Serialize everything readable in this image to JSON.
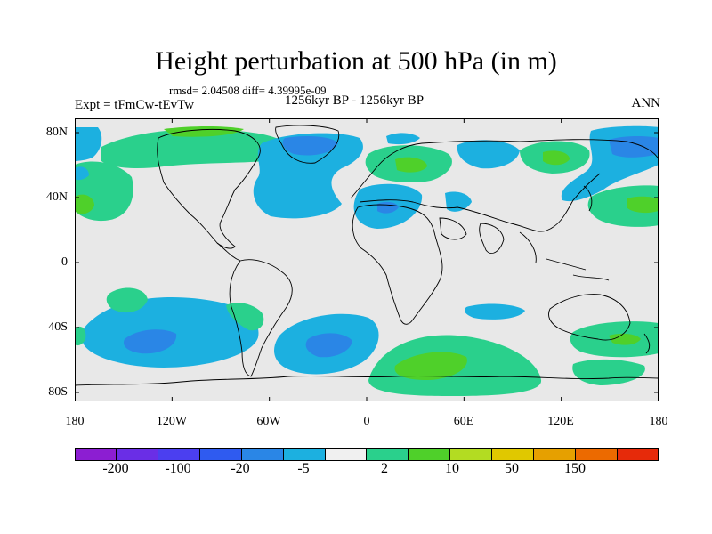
{
  "header": {
    "title": "Height perturbation at 500 hPa (in m)",
    "rmsd": "rmsd= 2.04508 diff= 4.39995e-09",
    "experiment": "Expt = tFmCw-tEvTw",
    "period": "1256kyr BP - 1256kyr BP",
    "season": "ANN"
  },
  "axes": {
    "lat_labels": [
      "80N",
      "40N",
      "0",
      "40S",
      "80S"
    ],
    "lon_labels": [
      "180",
      "120W",
      "60W",
      "0",
      "60E",
      "120E",
      "180"
    ]
  },
  "colorbar": {
    "colors": [
      "#8c1ed2",
      "#6a2ee6",
      "#4b3ff0",
      "#2f5bf0",
      "#2a86e6",
      "#1cb0e0",
      "#f0f0f0",
      "#2ad08c",
      "#4fd02a",
      "#b3dc22",
      "#e0c800",
      "#e6a000",
      "#ec6a00",
      "#e62a0a"
    ],
    "labels": [
      "-200",
      "-100",
      "-20",
      "-5",
      "2",
      "10",
      "50",
      "150"
    ]
  },
  "colors": {
    "land_neutral": "#e8e8e8",
    "cyan": "#1cb0e0",
    "blue": "#2a86e6",
    "green": "#2ad08c",
    "bright_green": "#4fd02a"
  }
}
